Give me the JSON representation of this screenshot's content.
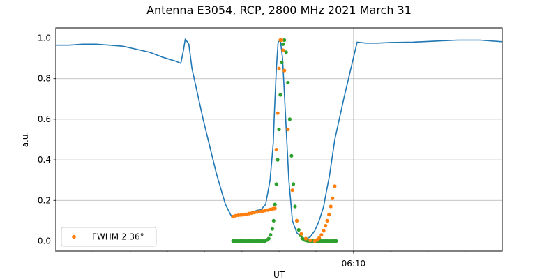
{
  "chart_data": {
    "type": "line",
    "title": "Antenna E3054, RCP, 2800 MHz 2021 March 31",
    "xlabel": "UT",
    "ylabel": "a.u.",
    "xlim": [
      0,
      1
    ],
    "ylim": [
      -0.05,
      1.05
    ],
    "x_major_ticks": [
      {
        "x": 0.667,
        "label": "06:10"
      }
    ],
    "x_minor_ticks": [
      0.0,
      0.083,
      0.167,
      0.25,
      0.333,
      0.417,
      0.5,
      0.583,
      0.75,
      0.833,
      0.917
    ],
    "y_ticks": [
      0.0,
      0.2,
      0.4,
      0.6,
      0.8,
      1.0
    ],
    "y_tick_labels": [
      "0.0",
      "0.2",
      "0.4",
      "0.6",
      "0.8",
      "1.0"
    ],
    "grid": true,
    "legend": {
      "placement": "lower-left",
      "entries": [
        "FWHM 2.36$^\\circ$"
      ]
    },
    "legend_display": [
      "FWHM 2.36°"
    ],
    "colors": {
      "line": "#1f77b4",
      "fwhm": "#ff7f0e",
      "fit": "#2ca02c",
      "grid": "#b0b0b0"
    },
    "series": [
      {
        "kind": "line",
        "color": "#1f77b4",
        "x": [
          0.0,
          0.03,
          0.06,
          0.09,
          0.12,
          0.15,
          0.18,
          0.21,
          0.24,
          0.27,
          0.28,
          0.286,
          0.29,
          0.298,
          0.305,
          0.33,
          0.36,
          0.38,
          0.395,
          0.41,
          0.425,
          0.437,
          0.45,
          0.46,
          0.47,
          0.48,
          0.487,
          0.49,
          0.494,
          0.498,
          0.503,
          0.508,
          0.515,
          0.522,
          0.53,
          0.54,
          0.55,
          0.56,
          0.57,
          0.58,
          0.59,
          0.6,
          0.605,
          0.613,
          0.625,
          0.645,
          0.66,
          0.675,
          0.695,
          0.72,
          0.75,
          0.8,
          0.85,
          0.9,
          0.95,
          1.0
        ],
        "y": [
          0.965,
          0.965,
          0.97,
          0.97,
          0.965,
          0.96,
          0.945,
          0.93,
          0.905,
          0.885,
          0.875,
          0.94,
          0.995,
          0.97,
          0.85,
          0.6,
          0.33,
          0.18,
          0.115,
          0.125,
          0.13,
          0.14,
          0.15,
          0.155,
          0.18,
          0.3,
          0.48,
          0.65,
          0.85,
          0.98,
          0.99,
          0.9,
          0.6,
          0.3,
          0.1,
          0.04,
          0.02,
          0.01,
          0.02,
          0.05,
          0.1,
          0.17,
          0.23,
          0.32,
          0.5,
          0.7,
          0.84,
          0.98,
          0.975,
          0.975,
          0.978,
          0.98,
          0.985,
          0.99,
          0.99,
          0.982
        ]
      },
      {
        "kind": "scatter",
        "name": "FWHM 2.36$^\\circ$",
        "color": "#ff7f0e",
        "x": [
          0.397,
          0.403,
          0.409,
          0.415,
          0.421,
          0.427,
          0.433,
          0.439,
          0.445,
          0.451,
          0.457,
          0.463,
          0.469,
          0.475,
          0.48,
          0.485,
          0.488,
          0.491,
          0.494,
          0.497,
          0.5,
          0.503,
          0.506,
          0.509,
          0.512,
          0.52,
          0.53,
          0.54,
          0.55,
          0.56,
          0.57,
          0.58,
          0.585,
          0.59,
          0.595,
          0.6,
          0.604,
          0.608,
          0.612,
          0.616,
          0.62,
          0.625
        ],
        "y": [
          0.12,
          0.125,
          0.127,
          0.128,
          0.13,
          0.132,
          0.135,
          0.137,
          0.14,
          0.143,
          0.145,
          0.147,
          0.15,
          0.152,
          0.155,
          0.157,
          0.16,
          0.16,
          0.45,
          0.63,
          0.85,
          0.99,
          0.99,
          0.94,
          0.84,
          0.55,
          0.25,
          0.1,
          0.035,
          0.012,
          0.003,
          0.0,
          0.005,
          0.015,
          0.03,
          0.05,
          0.075,
          0.1,
          0.13,
          0.17,
          0.21,
          0.27
        ]
      },
      {
        "kind": "scatter",
        "color": "#2ca02c",
        "x": [
          0.397,
          0.401,
          0.405,
          0.409,
          0.413,
          0.417,
          0.421,
          0.425,
          0.429,
          0.433,
          0.437,
          0.441,
          0.445,
          0.449,
          0.453,
          0.457,
          0.461,
          0.465,
          0.469,
          0.473,
          0.477,
          0.481,
          0.485,
          0.488,
          0.491,
          0.494,
          0.497,
          0.5,
          0.503,
          0.506,
          0.509,
          0.512,
          0.516,
          0.52,
          0.524,
          0.528,
          0.532,
          0.536,
          0.54,
          0.544,
          0.548,
          0.552,
          0.556,
          0.56,
          0.564,
          0.568,
          0.572,
          0.576,
          0.58,
          0.584,
          0.588,
          0.592,
          0.596,
          0.6,
          0.604,
          0.608,
          0.612,
          0.616,
          0.62,
          0.624,
          0.628
        ],
        "y": [
          0.0,
          0.0,
          0.0,
          0.0,
          0.0,
          0.0,
          0.0,
          0.0,
          0.0,
          0.0,
          0.0,
          0.0,
          0.0,
          0.0,
          0.0,
          0.0,
          0.0,
          0.0,
          0.0,
          0.005,
          0.012,
          0.03,
          0.06,
          0.1,
          0.18,
          0.28,
          0.4,
          0.55,
          0.72,
          0.88,
          0.97,
          0.99,
          0.93,
          0.78,
          0.6,
          0.42,
          0.28,
          0.17,
          0.1,
          0.055,
          0.028,
          0.013,
          0.006,
          0.003,
          0.001,
          0.0,
          0.0,
          0.0,
          0.0,
          0.0,
          0.0,
          0.0,
          0.0,
          0.0,
          0.0,
          0.0,
          0.0,
          0.0,
          0.0,
          0.0,
          0.0
        ]
      }
    ]
  }
}
